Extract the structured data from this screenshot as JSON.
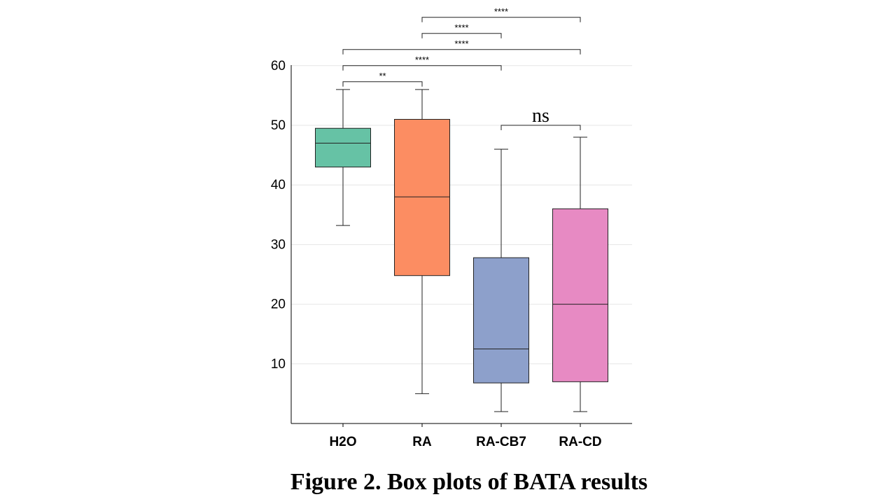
{
  "caption": "Figure 2. Box plots of BATA results",
  "chart_data": {
    "type": "box",
    "categories": [
      "H2O",
      "RA",
      "RA-CB7",
      "RA-CD"
    ],
    "colors": [
      "#66c2a5",
      "#fc8d62",
      "#8da0cb",
      "#e78ac3"
    ],
    "boxes": [
      {
        "category": "H2O",
        "whisker_low": 33.2,
        "q1": 43,
        "median": 47,
        "q3": 49.5,
        "whisker_high": 56
      },
      {
        "category": "RA",
        "whisker_low": 5,
        "q1": 24.8,
        "median": 38,
        "q3": 51,
        "whisker_high": 56
      },
      {
        "category": "RA-CB7",
        "whisker_low": 2,
        "q1": 6.8,
        "median": 12.5,
        "q3": 27.8,
        "whisker_high": 46
      },
      {
        "category": "RA-CD",
        "whisker_low": 2,
        "q1": 7,
        "median": 20,
        "q3": 36,
        "whisker_high": 48
      }
    ],
    "yticks": [
      10,
      20,
      30,
      40,
      50,
      60
    ],
    "ylim": [
      0,
      60
    ],
    "grid": true,
    "significance": [
      {
        "from": "H2O",
        "to": "RA",
        "y": 57.3,
        "label": "**",
        "style": "sans"
      },
      {
        "from": "H2O",
        "to": "RA-CB7",
        "y": 60,
        "label": "****",
        "style": "sans"
      },
      {
        "from": "H2O",
        "to": "RA-CD",
        "y": 62.7,
        "label": "****",
        "style": "sans"
      },
      {
        "from": "RA",
        "to": "RA-CB7",
        "y": 65.4,
        "label": "****",
        "style": "sans"
      },
      {
        "from": "RA",
        "to": "RA-CD",
        "y": 68.1,
        "label": "****",
        "style": "sans"
      },
      {
        "from": "RA-CB7",
        "to": "RA-CD",
        "y": 50,
        "label": "ns",
        "style": "serif"
      }
    ]
  }
}
